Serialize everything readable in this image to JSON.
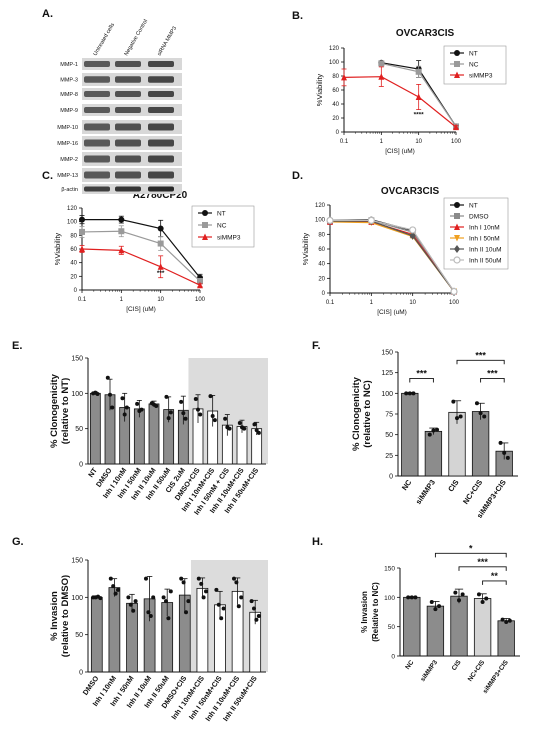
{
  "panel_letters": {
    "A": "A.",
    "B": "B.",
    "C": "C.",
    "D": "D.",
    "E": "E.",
    "F": "F.",
    "G": "G.",
    "H": "H."
  },
  "western_blot": {
    "lanes": [
      "Untreated cells",
      "Negative Control",
      "siRNA MMP3"
    ],
    "bands": [
      "MMP-1",
      "MMP-3",
      "MMP-8",
      "MMP-9",
      "MMP-10",
      "MMP-16",
      "MMP-2",
      "MMP-13",
      "β-actin"
    ]
  },
  "chart_data": [
    {
      "id": "B",
      "type": "line",
      "title": "OVCAR3CIS",
      "xlabel": "[CIS] (uM)",
      "ylabel": "%Viability",
      "x": [
        0.1,
        1,
        10,
        100
      ],
      "xscale": "log",
      "xlim": [
        0.1,
        100
      ],
      "ylim": [
        0,
        120
      ],
      "xticks": [
        "0.1",
        "1",
        "10",
        "100"
      ],
      "yticks": [
        0,
        20,
        40,
        60,
        80,
        100,
        120
      ],
      "legend_position": "top-right",
      "annotation": "****",
      "annotation_x": 10,
      "series": [
        {
          "name": "NT",
          "color": "#111111",
          "marker": "circle",
          "x": [
            1,
            10,
            100
          ],
          "values": [
            99,
            90,
            8
          ],
          "err": [
            2,
            12,
            2
          ]
        },
        {
          "name": "NC",
          "color": "#9a9a9a",
          "marker": "square",
          "x": [
            1,
            10,
            100
          ],
          "values": [
            98,
            86,
            8
          ],
          "err": [
            2,
            8,
            2
          ]
        },
        {
          "name": "siMMP3",
          "color": "#e02020",
          "marker": "triangle",
          "x": [
            0.1,
            1,
            10,
            100
          ],
          "values": [
            78,
            79,
            50,
            7
          ],
          "err": [
            12,
            14,
            18,
            2
          ]
        }
      ]
    },
    {
      "id": "C",
      "type": "line",
      "title": "A2780CP20",
      "xlabel": "[CIS] (uM)",
      "ylabel": "%Viability",
      "x": [
        0.1,
        1,
        10,
        100
      ],
      "xscale": "log",
      "xlim": [
        0.1,
        100
      ],
      "ylim": [
        0,
        120
      ],
      "xticks": [
        "0.1",
        "1",
        "10",
        "100"
      ],
      "yticks": [
        0,
        20,
        40,
        60,
        80,
        100,
        120
      ],
      "legend_position": "top-right",
      "annotation": "***",
      "annotation_x": 10,
      "series": [
        {
          "name": "NT",
          "color": "#111111",
          "marker": "circle",
          "x": [
            0.1,
            1,
            10,
            100
          ],
          "values": [
            103,
            103,
            90,
            18
          ],
          "err": [
            6,
            5,
            12,
            5
          ]
        },
        {
          "name": "NC",
          "color": "#9a9a9a",
          "marker": "square",
          "x": [
            0.1,
            1,
            10,
            100
          ],
          "values": [
            85,
            86,
            68,
            13
          ],
          "err": [
            8,
            8,
            10,
            4
          ]
        },
        {
          "name": "siMMP3",
          "color": "#e02020",
          "marker": "triangle",
          "x": [
            0.1,
            1,
            10,
            100
          ],
          "values": [
            60,
            58,
            34,
            7
          ],
          "err": [
            5,
            6,
            16,
            2
          ]
        }
      ]
    },
    {
      "id": "D",
      "type": "line",
      "title": "OVCAR3CIS",
      "xlabel": "[CIS] (uM)",
      "ylabel": "%Viability",
      "x": [
        0.1,
        1,
        10,
        100
      ],
      "xscale": "log",
      "xlim": [
        0.1,
        100
      ],
      "ylim": [
        0,
        120
      ],
      "xticks": [
        "0.1",
        "1",
        "10",
        "100"
      ],
      "yticks": [
        0,
        20,
        40,
        60,
        80,
        100,
        120
      ],
      "legend_position": "top-right",
      "series": [
        {
          "name": "NT",
          "color": "#111111",
          "marker": "circle",
          "x": [
            0.1,
            1,
            10,
            100
          ],
          "values": [
            99,
            100,
            85,
            2
          ],
          "err": [
            1,
            1,
            2,
            1
          ]
        },
        {
          "name": "DMSO",
          "color": "#8a8a8a",
          "marker": "square",
          "x": [
            0.1,
            1,
            10,
            100
          ],
          "values": [
            98,
            99,
            83,
            2
          ],
          "err": [
            1,
            1,
            2,
            1
          ]
        },
        {
          "name": "Inh I 10nM",
          "color": "#e02020",
          "marker": "triangle",
          "x": [
            0.1,
            1,
            10,
            100
          ],
          "values": [
            97,
            97,
            80,
            2
          ],
          "err": [
            1,
            1,
            2,
            1
          ]
        },
        {
          "name": "Inh I 50nM",
          "color": "#f0a020",
          "marker": "triangle-down",
          "x": [
            0.1,
            1,
            10,
            100
          ],
          "values": [
            97,
            96,
            77,
            2
          ],
          "err": [
            1,
            1,
            2,
            1
          ]
        },
        {
          "name": "Inh II 10uM",
          "color": "#555555",
          "marker": "diamond",
          "x": [
            0.1,
            1,
            10,
            100
          ],
          "values": [
            98,
            98,
            78,
            2
          ],
          "err": [
            1,
            1,
            2,
            1
          ]
        },
        {
          "name": "Inh II 50uM",
          "color": "#bbbbbb",
          "marker": "circle-open",
          "x": [
            0.1,
            1,
            10,
            100
          ],
          "values": [
            99,
            99,
            86,
            2
          ],
          "err": [
            1,
            1,
            2,
            1
          ]
        }
      ]
    },
    {
      "id": "E",
      "type": "bar",
      "ylabel": "% Clonogenicity\n(relative to NT)",
      "ylim": [
        0,
        150
      ],
      "yticks": [
        0,
        50,
        100,
        150
      ],
      "shade_from_index": 7,
      "categories": [
        "NT",
        "DMSO",
        "Inh I 10nM",
        "Inh I 50nM",
        "Inh II 10uM",
        "Inh II 50uM",
        "CIS 2uM",
        "DMSO+CIS",
        "Inh I 10nM+CIS",
        "Inh I 50nM + CIS",
        "Inh II 10uM+CIS",
        "Inh II 50uM+CIS"
      ],
      "values": [
        100,
        98,
        80,
        78,
        85,
        77,
        76,
        78,
        75,
        55,
        53,
        50
      ],
      "err": [
        2,
        22,
        20,
        12,
        4,
        18,
        20,
        20,
        22,
        15,
        9,
        9
      ],
      "colors": [
        "#8c8c8c",
        "#8c8c8c",
        "#8c8c8c",
        "#8c8c8c",
        "#8c8c8c",
        "#8c8c8c",
        "#8c8c8c",
        "#ffffff",
        "#ffffff",
        "#ffffff",
        "#ffffff",
        "#ffffff"
      ],
      "points": [
        [
          100,
          101,
          99
        ],
        [
          122,
          98,
          80
        ],
        [
          93,
          70,
          80
        ],
        [
          85,
          75,
          77
        ],
        [
          86,
          84,
          82
        ],
        [
          95,
          65,
          73
        ],
        [
          88,
          72,
          64
        ],
        [
          92,
          77,
          70
        ],
        [
          96,
          68,
          62
        ],
        [
          64,
          52,
          50
        ],
        [
          58,
          52,
          50
        ],
        [
          56,
          48,
          44
        ]
      ]
    },
    {
      "id": "F",
      "type": "bar",
      "ylabel": "% Clonogenicity\n(relative to NC)",
      "ylim": [
        0,
        150
      ],
      "yticks": [
        0,
        25,
        50,
        75,
        100,
        125,
        150
      ],
      "categories": [
        "NC",
        "siMMP3",
        "CIS",
        "NC+CIS",
        "siMMP3+CIS"
      ],
      "values": [
        100,
        54,
        77,
        78,
        30
      ],
      "err": [
        1,
        4,
        14,
        10,
        10
      ],
      "colors": [
        "#8c8c8c",
        "#8c8c8c",
        "#d4d4d4",
        "#8c8c8c",
        "#8c8c8c"
      ],
      "points": [
        [
          100,
          100,
          100
        ],
        [
          50,
          55,
          56
        ],
        [
          90,
          70,
          72
        ],
        [
          88,
          76,
          72
        ],
        [
          40,
          28,
          22
        ]
      ],
      "significance": [
        {
          "from": 0,
          "to": 1,
          "label": "***",
          "y": 118
        },
        {
          "from": 2,
          "to": 4,
          "label": "***",
          "y": 140
        },
        {
          "from": 3,
          "to": 4,
          "label": "***",
          "y": 118
        }
      ]
    },
    {
      "id": "G",
      "type": "bar",
      "ylabel": "% Invasion\n(relative to DMSO)",
      "ylim": [
        0,
        150
      ],
      "yticks": [
        0,
        50,
        100,
        150
      ],
      "shade_from_index": 6,
      "categories": [
        "DMSO",
        "Inh I 10nM",
        "Inh I 50nM",
        "Inh II 10uM",
        "Inh II 50uM",
        "DMSO+CIS",
        "Inh I 10nM+CIS",
        "Inh I 50nM+CIS",
        "Inh II 10uM+CIS",
        "Inh II 50uM+CIS"
      ],
      "values": [
        100,
        113,
        92,
        98,
        93,
        103,
        112,
        90,
        108,
        80
      ],
      "err": [
        2,
        12,
        12,
        30,
        18,
        22,
        14,
        18,
        18,
        16
      ],
      "colors": [
        "#8c8c8c",
        "#8c8c8c",
        "#8c8c8c",
        "#8c8c8c",
        "#8c8c8c",
        "#8c8c8c",
        "#ffffff",
        "#ffffff",
        "#ffffff",
        "#ffffff"
      ],
      "points": [
        [
          100,
          100,
          101,
          99
        ],
        [
          125,
          115,
          105,
          110
        ],
        [
          100,
          90,
          82,
          95
        ],
        [
          125,
          80,
          75,
          100
        ],
        [
          100,
          95,
          72,
          108
        ],
        [
          125,
          120,
          80,
          95
        ],
        [
          125,
          118,
          100,
          108
        ],
        [
          110,
          90,
          72,
          85
        ],
        [
          125,
          120,
          88,
          100
        ],
        [
          95,
          85,
          70,
          75
        ]
      ]
    },
    {
      "id": "H",
      "type": "bar",
      "ylabel": "% Invasion\n(Relative to NC)",
      "ylim": [
        0,
        150
      ],
      "yticks": [
        0,
        50,
        100,
        150
      ],
      "categories": [
        "NC",
        "siMMP3",
        "CIS",
        "NC+CIS",
        "siMMP3+CIS"
      ],
      "values": [
        100,
        85,
        102,
        98,
        60
      ],
      "err": [
        1,
        8,
        12,
        8,
        4
      ],
      "colors": [
        "#8c8c8c",
        "#8c8c8c",
        "#8c8c8c",
        "#d4d4d4",
        "#8c8c8c"
      ],
      "points": [
        [
          100,
          100,
          100
        ],
        [
          92,
          80,
          85
        ],
        [
          108,
          95,
          105
        ],
        [
          105,
          92,
          98
        ],
        [
          62,
          58,
          60
        ]
      ],
      "significance": [
        {
          "from": 1,
          "to": 4,
          "label": "*",
          "y": 175
        },
        {
          "from": 2,
          "to": 4,
          "label": "***",
          "y": 152
        },
        {
          "from": 3,
          "to": 4,
          "label": "**",
          "y": 128
        }
      ]
    }
  ]
}
